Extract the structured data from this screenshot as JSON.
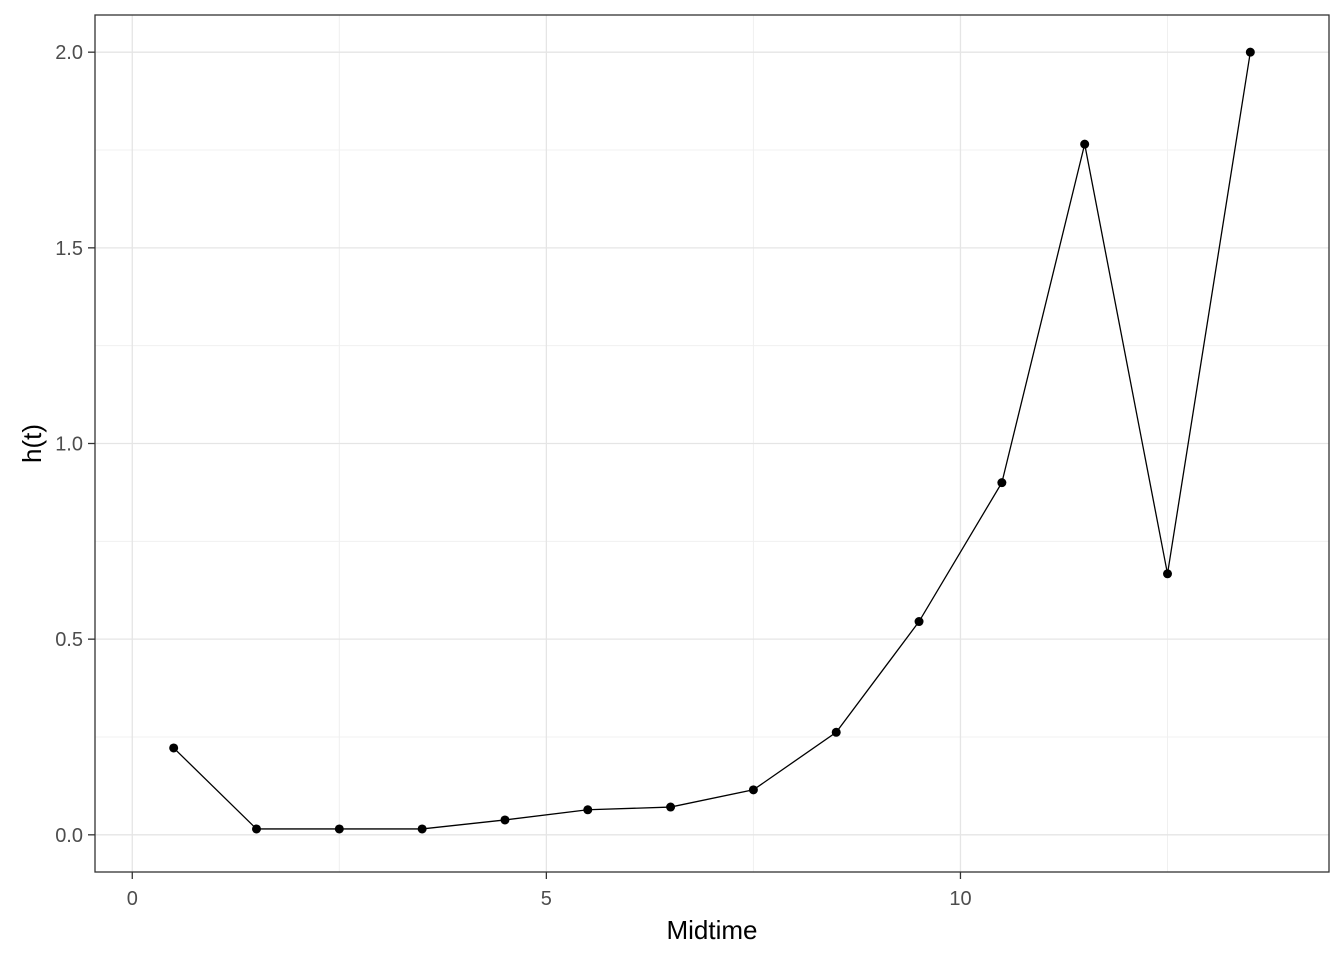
{
  "chart_data": {
    "type": "line",
    "title": "",
    "xlabel": "Midtime",
    "ylabel": "h(t)",
    "xlim": [
      -0.45,
      14.45
    ],
    "ylim": [
      -0.095,
      2.095
    ],
    "x_ticks": [
      0,
      5,
      10
    ],
    "x_tick_labels": [
      "0",
      "5",
      "10"
    ],
    "x_minor_ticks": [
      2.5,
      7.5,
      12.5
    ],
    "y_ticks": [
      0.0,
      0.5,
      1.0,
      1.5,
      2.0
    ],
    "y_tick_labels": [
      "0.0",
      "0.5",
      "1.0",
      "1.5",
      "2.0"
    ],
    "y_minor_ticks": [
      0.25,
      0.75,
      1.25,
      1.75
    ],
    "grid": true,
    "theme": "bw",
    "series": [
      {
        "x": [
          0.5,
          1.5,
          2.5,
          3.5,
          4.5,
          5.5,
          6.5,
          7.5,
          8.5,
          9.5,
          10.5,
          11.5,
          12.5,
          13.5
        ],
        "y": [
          0.222,
          0.015,
          0.015,
          0.015,
          0.038,
          0.064,
          0.071,
          0.115,
          0.262,
          0.545,
          0.9,
          1.765,
          0.667,
          2.0
        ],
        "color": "#000000",
        "markers": true
      }
    ]
  }
}
